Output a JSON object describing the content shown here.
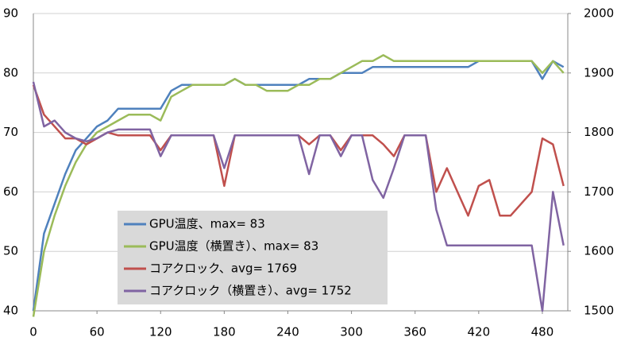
{
  "chart_data": {
    "type": "line",
    "x": [
      0,
      10,
      20,
      30,
      40,
      50,
      60,
      70,
      80,
      90,
      100,
      110,
      120,
      130,
      140,
      150,
      160,
      170,
      180,
      190,
      200,
      210,
      220,
      230,
      240,
      250,
      260,
      270,
      280,
      290,
      300,
      310,
      320,
      330,
      340,
      350,
      360,
      370,
      380,
      390,
      400,
      410,
      420,
      430,
      440,
      450,
      460,
      470,
      480,
      490,
      500
    ],
    "series": [
      {
        "name": "GPU温度、max= 83",
        "color": "#4f81bd",
        "values": [
          40,
          53,
          58,
          63,
          67,
          69,
          71,
          72,
          74,
          74,
          74,
          74,
          74,
          77,
          78,
          78,
          78,
          78,
          78,
          79,
          78,
          78,
          78,
          78,
          78,
          78,
          79,
          79,
          79,
          80,
          80,
          80,
          81,
          81,
          81,
          81,
          81,
          81,
          81,
          81,
          81,
          81,
          82,
          82,
          82,
          82,
          82,
          82,
          79,
          82,
          81
        ]
      },
      {
        "name": "GPU温度（横置き）、max= 83",
        "color": "#9bbb59",
        "values": [
          39,
          50,
          56,
          61,
          65,
          68,
          70,
          71,
          72,
          73,
          73,
          73,
          72,
          76,
          77,
          78,
          78,
          78,
          78,
          79,
          78,
          78,
          77,
          77,
          77,
          78,
          78,
          79,
          79,
          80,
          81,
          82,
          82,
          83,
          82,
          82,
          82,
          82,
          82,
          82,
          82,
          82,
          82,
          82,
          82,
          82,
          82,
          82,
          80,
          82,
          80
        ]
      },
      {
        "name": "コアクロック、avg= 1769",
        "color": "#c0504d",
        "axis": "y2",
        "values": [
          1880,
          1830,
          1810,
          1790,
          1790,
          1780,
          1790,
          1800,
          1795,
          1795,
          1795,
          1795,
          1770,
          1795,
          1795,
          1795,
          1795,
          1795,
          1710,
          1795,
          1795,
          1795,
          1795,
          1795,
          1795,
          1795,
          1780,
          1795,
          1795,
          1770,
          1795,
          1795,
          1795,
          1780,
          1760,
          1795,
          1795,
          1795,
          1700,
          1740,
          1700,
          1660,
          1710,
          1720,
          1660,
          1660,
          1680,
          1700,
          1790,
          1780,
          1710
        ]
      },
      {
        "name": "コアクロック（横置き）、avg= 1752",
        "color": "#8064a2",
        "axis": "y2",
        "values": [
          1885,
          1810,
          1820,
          1800,
          1790,
          1785,
          1790,
          1800,
          1805,
          1805,
          1805,
          1805,
          1760,
          1795,
          1795,
          1795,
          1795,
          1795,
          1740,
          1795,
          1795,
          1795,
          1795,
          1795,
          1795,
          1795,
          1730,
          1795,
          1795,
          1760,
          1795,
          1795,
          1720,
          1690,
          1740,
          1795,
          1795,
          1795,
          1670,
          1610,
          1610,
          1610,
          1610,
          1610,
          1610,
          1610,
          1610,
          1610,
          1500,
          1700,
          1610
        ]
      }
    ],
    "xlim": [
      0,
      504
    ],
    "xticks": [
      0,
      60,
      120,
      180,
      240,
      300,
      360,
      420,
      480
    ],
    "ylim": [
      40,
      90
    ],
    "yticks": [
      40,
      50,
      60,
      70,
      80,
      90
    ],
    "y2lim": [
      1500,
      2000
    ],
    "y2ticks": [
      1500,
      1600,
      1700,
      1800,
      1900,
      2000
    ],
    "grid": true
  }
}
